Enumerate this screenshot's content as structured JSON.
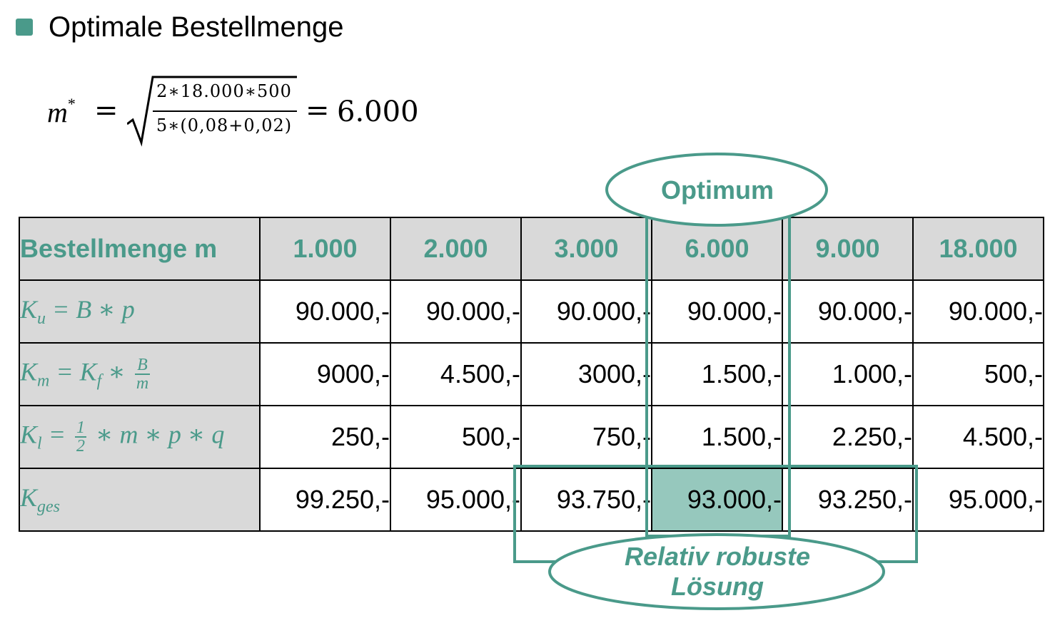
{
  "heading": "Optimale Bestellmenge",
  "formula": {
    "lhs": "m",
    "lhs_sup": "*",
    "equals": "=",
    "numerator": "2∗18.000∗500",
    "denominator": "5∗(0,08+0,02)",
    "result": "6.000"
  },
  "table": {
    "header_label": "Bestellmenge m",
    "columns": [
      "1.000",
      "2.000",
      "3.000",
      "6.000",
      "9.000",
      "18.000"
    ],
    "rows": [
      {
        "label_parts": {
          "k": "K",
          "sub": "u",
          "rest": " = B ∗ p"
        },
        "values": [
          "90.000,-",
          "90.000,-",
          "90.000,-",
          "90.000,-",
          "90.000,-",
          "90.000,-"
        ]
      },
      {
        "label_parts": {
          "k": "K",
          "sub": "m",
          "mid": " = K",
          "sub2": "f",
          "op": " ∗ ",
          "frac_num": "B",
          "frac_den": "m"
        },
        "values": [
          "9000,-",
          "4.500,-",
          "3000,-",
          "1.500,-",
          "1.000,-",
          "500,-"
        ]
      },
      {
        "label_parts": {
          "k": "K",
          "sub": "l",
          "eq": " = ",
          "frac_num": "1",
          "frac_den": "2",
          "rest": " ∗ m ∗ p ∗ q"
        },
        "values": [
          "250,-",
          "500,-",
          "750,-",
          "1.500,-",
          "2.250,-",
          "4.500,-"
        ]
      },
      {
        "label_parts": {
          "k": "K",
          "sub": "ges"
        },
        "values": [
          "99.250,-",
          "95.000,-",
          "93.750,-",
          "93.000,-",
          "93.250,-",
          "95.000,-"
        ]
      }
    ]
  },
  "callouts": {
    "optimum": "Optimum",
    "robust_line1": "Relativ robuste",
    "robust_line2": "Lösung"
  },
  "colors": {
    "accent": "#4a9a8a",
    "header_bg": "#d9d9d9",
    "optimum_highlight": "#96c8bd"
  }
}
